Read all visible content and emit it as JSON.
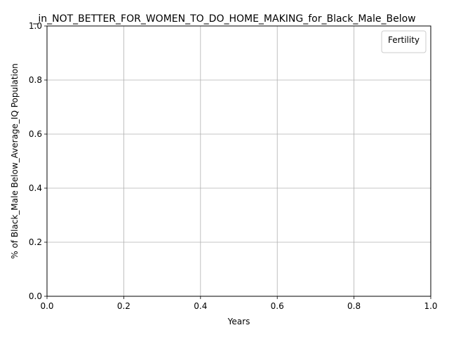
{
  "chart_data": {
    "type": "line",
    "title": "_in_NOT_BETTER_FOR_WOMEN_TO_DO_HOME_MAKING_for_Black_Male_Below",
    "xlabel": "Years",
    "ylabel": "% of Black_Male Below_Average_IQ Population",
    "xlim": [
      0.0,
      1.0
    ],
    "ylim": [
      0.0,
      1.0
    ],
    "x_ticks": [
      "0.0",
      "0.2",
      "0.4",
      "0.6",
      "0.8",
      "1.0"
    ],
    "y_ticks": [
      "0.0",
      "0.2",
      "0.4",
      "0.6",
      "0.8",
      "1.0"
    ],
    "grid": true,
    "legend": {
      "title": "Fertility",
      "position": "top-right",
      "entries": []
    },
    "series": []
  },
  "colors": {
    "grid": "#b0b0b0",
    "axis": "#000000",
    "background": "#ffffff",
    "legend_border": "#cccccc"
  }
}
